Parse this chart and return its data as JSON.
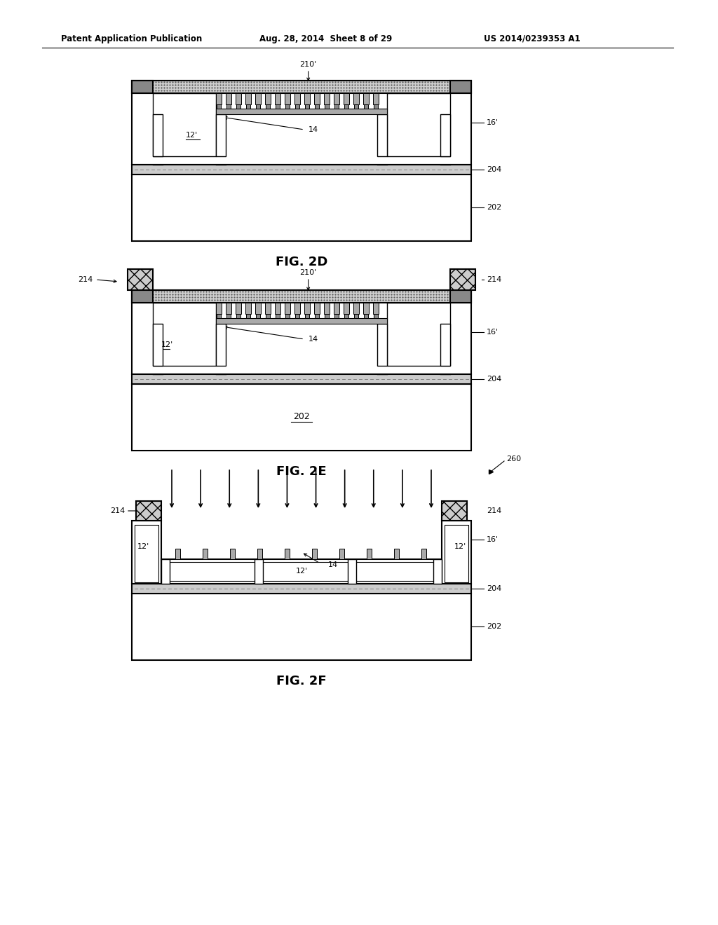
{
  "bg_color": "#ffffff",
  "header_left": "Patent Application Publication",
  "header_mid": "Aug. 28, 2014  Sheet 8 of 29",
  "header_right": "US 2014/0239353 A1",
  "fig_labels": [
    "FIG. 2D",
    "FIG. 2E",
    "FIG. 2F"
  ]
}
